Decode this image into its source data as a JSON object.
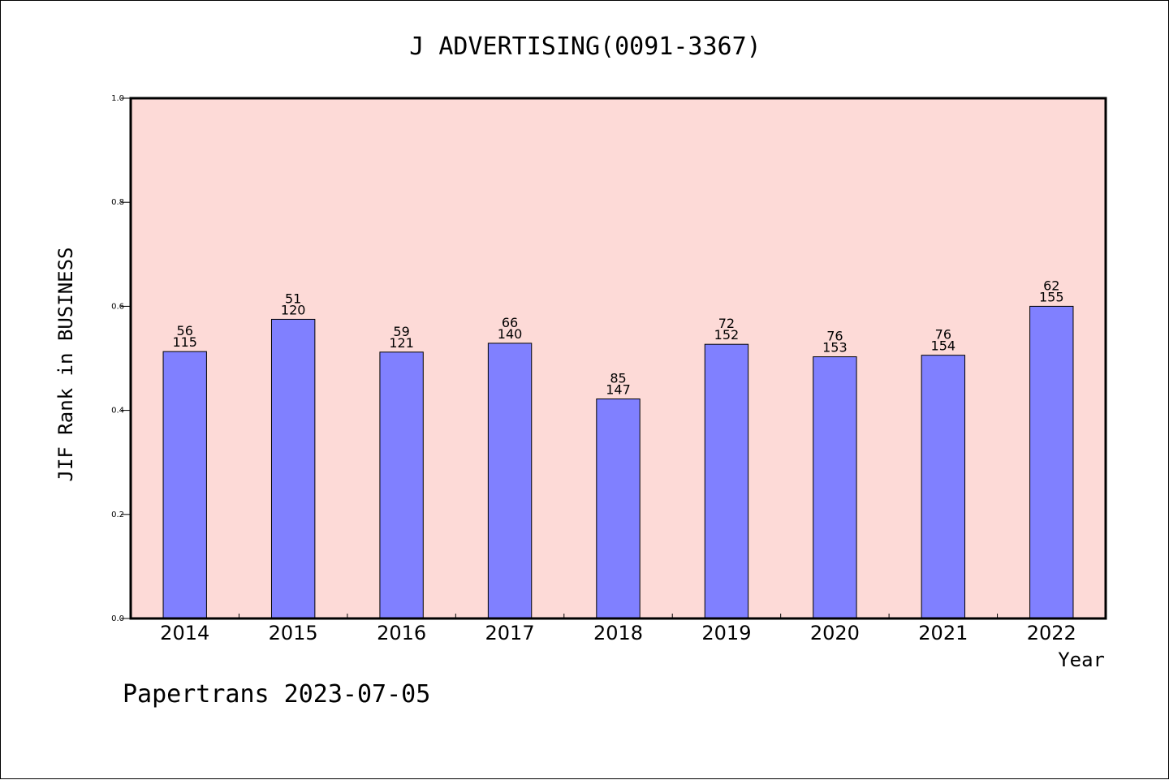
{
  "chart_data": {
    "type": "bar",
    "title": "J ADVERTISING(0091-3367)",
    "ylabel": "JIF Rank in BUSINESS",
    "xlabel": "Year",
    "categories": [
      "2014",
      "2015",
      "2016",
      "2017",
      "2018",
      "2019",
      "2020",
      "2021",
      "2022"
    ],
    "values": [
      0.513,
      0.575,
      0.512,
      0.529,
      0.422,
      0.527,
      0.503,
      0.506,
      0.6
    ],
    "rank_labels": [
      "56",
      "51",
      "59",
      "66",
      "85",
      "72",
      "76",
      "76",
      "62"
    ],
    "total_labels": [
      "115",
      "120",
      "121",
      "140",
      "147",
      "152",
      "153",
      "154",
      "155"
    ],
    "ylim": [
      0,
      1.0
    ],
    "yticks": [
      "0.0",
      "0.2",
      "0.4",
      "0.6",
      "0.8",
      "1.0"
    ],
    "grid": false,
    "colors": {
      "plot_background": "#fddad7",
      "bar_fill": "#8080ff",
      "bar_stroke": "#000000"
    }
  },
  "footer": "Papertrans 2023-07-05"
}
